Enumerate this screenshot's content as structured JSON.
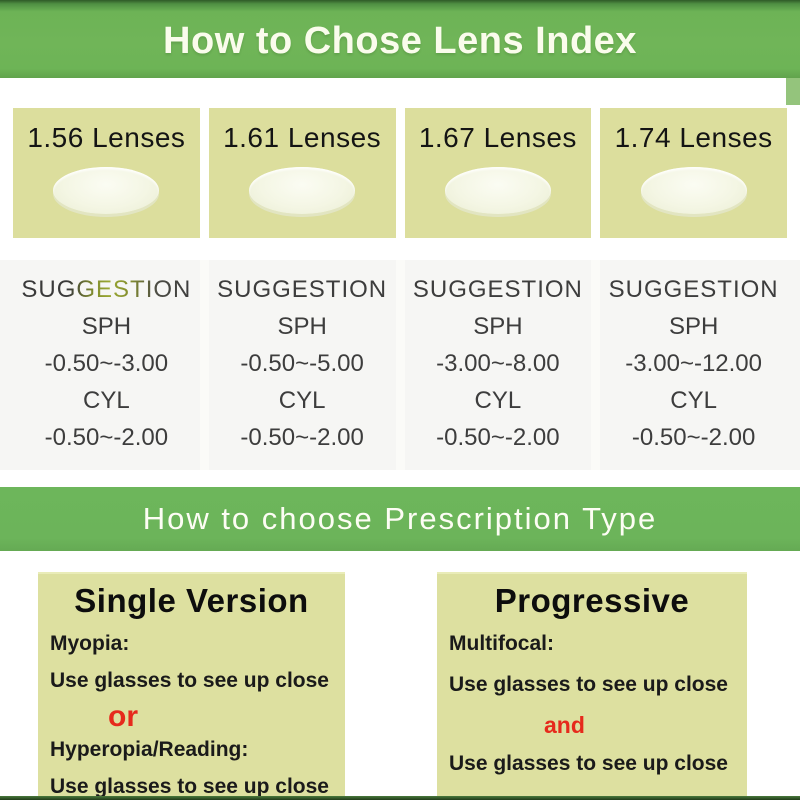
{
  "header": {
    "title": "How to Chose Lens Index"
  },
  "labels": {
    "suggestion": "SUGGESTION",
    "sph": "SPH",
    "cyl": "CYL"
  },
  "lenses": [
    {
      "name": "1.56 Lenses",
      "sph_range": "-0.50~-3.00",
      "cyl_range": "-0.50~-2.00"
    },
    {
      "name": "1.61 Lenses",
      "sph_range": "-0.50~-5.00",
      "cyl_range": "-0.50~-2.00"
    },
    {
      "name": "1.67 Lenses",
      "sph_range": "-3.00~-8.00",
      "cyl_range": "-0.50~-2.00"
    },
    {
      "name": "1.74 Lenses",
      "sph_range": "-3.00~-12.00",
      "cyl_range": "-0.50~-2.00"
    }
  ],
  "type_section": {
    "title": "How to choose Prescription Type"
  },
  "prescription_types": [
    {
      "title": "Single Version",
      "label1": "Myopia:",
      "desc1": "Use glasses to see up close",
      "connector": "or",
      "label2": "Hyperopia/Reading:",
      "desc2": "Use glasses to see up close"
    },
    {
      "title": "Progressive",
      "label1": "Multifocal:",
      "desc1": "Use glasses to see up close",
      "connector": "and",
      "desc2": "Use glasses to see up close"
    }
  ],
  "colors": {
    "banner_green": "#6fb457",
    "bar_green": "#6cb45a",
    "cell_khaki": "#dcde9d",
    "box_khaki": "#dde0a0",
    "suggestion_bg": "#f6f6f4",
    "connector_red": "#e62a1c",
    "title_white": "#fafcec",
    "text_dark": "#1a1a1a"
  }
}
